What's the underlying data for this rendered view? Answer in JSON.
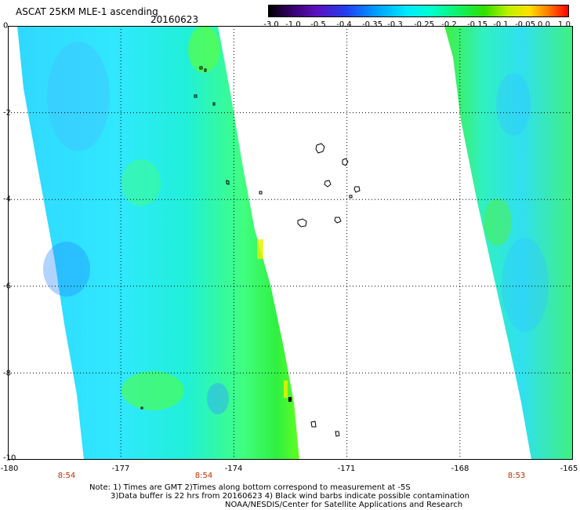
{
  "header": {
    "title": "ASCAT 25KM MLE-1 ascending",
    "date": "20160623"
  },
  "colorbar": {
    "tick_labels": [
      "-3.0",
      "-1.0",
      "-0.5",
      "-0.4",
      "-0.35",
      "-0.3",
      "-0.25",
      "-0.2",
      "-0.15",
      "-0.1",
      "-0.05",
      "0.0",
      "1.0"
    ],
    "colors": [
      "#000000",
      "#5a10c0",
      "#2040f0",
      "#00a0ff",
      "#00e8ff",
      "#00ffd0",
      "#10f060",
      "#30e000",
      "#c0f000",
      "#ffe000",
      "#ff8000",
      "#ff0000"
    ]
  },
  "axes": {
    "x_ticks": [
      "-180",
      "-177",
      "-174",
      "-171",
      "-168",
      "-165"
    ],
    "y_ticks": [
      "0",
      "-2",
      "-4",
      "-6",
      "-8",
      "-10"
    ],
    "xlim": [
      -180,
      -165
    ],
    "ylim": [
      -10,
      0
    ],
    "grid": true
  },
  "time_labels": [
    {
      "text": "8:54",
      "lon": -178.6
    },
    {
      "text": "8:54",
      "lon": -174.8
    },
    {
      "text": "8:53",
      "lon": -166.5
    }
  ],
  "footer": {
    "note1": "Note: 1) Times are GMT 2)Times along bottom correspond to measurement at -5S",
    "note2": "3)Data buffer is 22 hrs from 20160623 4) Black wind barbs indicate possible contamination",
    "credit": "NOAA/NESDIS/Center for Satellite Applications and Research"
  }
}
